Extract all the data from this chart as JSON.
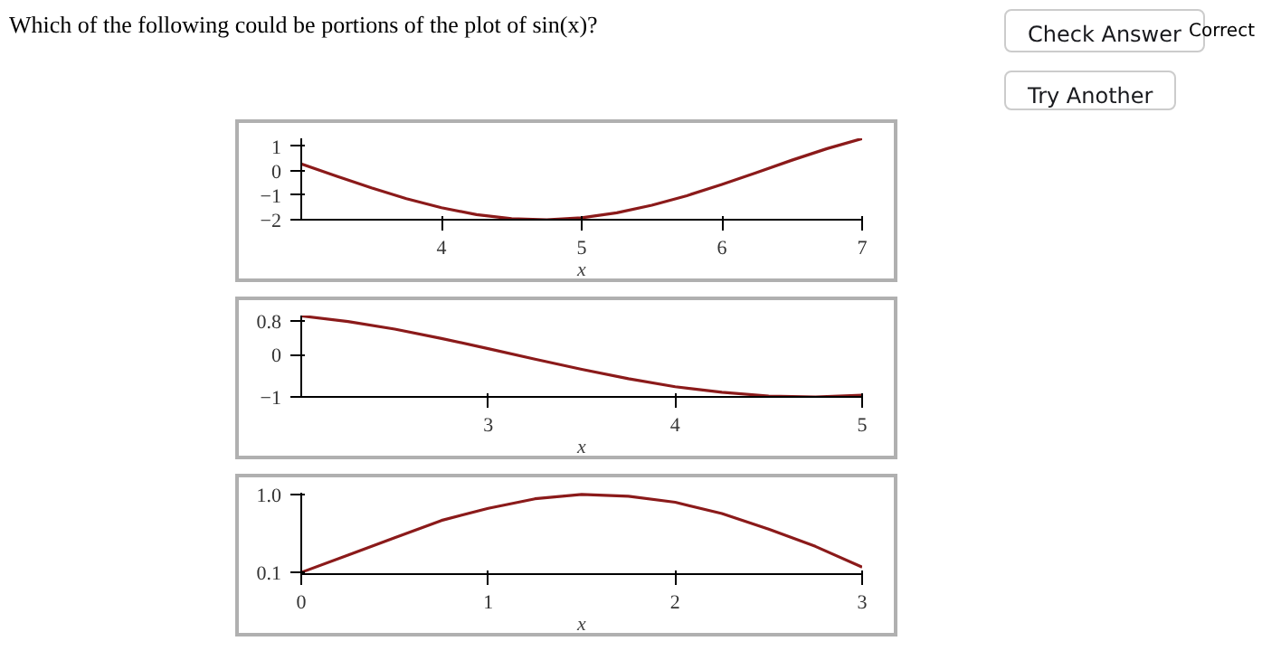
{
  "chart_data": [
    {
      "type": "line",
      "title": "Which of the following could be portions of the plot of sin(x)?",
      "annotations": [
        "Check Answer",
        "Correct",
        "Try Another"
      ],
      "xlabel": "x",
      "x": [
        3,
        3.25,
        3.5,
        3.75,
        4,
        4.25,
        4.5,
        4.75,
        5,
        5.25,
        5.5,
        5.75,
        6,
        6.25,
        6.5,
        6.75,
        7
      ],
      "series": [
        {
          "color": "#8b1a1a",
          "values": [
            0.28,
            -0.22,
            -0.7,
            -1.14,
            -1.51,
            -1.79,
            -1.96,
            -2.0,
            -1.92,
            -1.72,
            -1.41,
            -1.02,
            -0.56,
            -0.07,
            0.43,
            0.9,
            1.31
          ]
        }
      ],
      "xlim": [
        3,
        7
      ],
      "ylim": [
        -2,
        1.32
      ],
      "xticks": [
        4,
        5,
        6,
        7
      ],
      "yticks": [
        -2,
        -1,
        0,
        1
      ],
      "grid": false
    },
    {
      "type": "line",
      "xlabel": "x",
      "x": [
        2,
        2.25,
        2.5,
        2.75,
        3,
        3.25,
        3.5,
        3.75,
        4,
        4.25,
        4.5,
        4.75,
        5
      ],
      "series": [
        {
          "color": "#8b1a1a",
          "values": [
            0.91,
            0.78,
            0.6,
            0.38,
            0.14,
            -0.11,
            -0.35,
            -0.57,
            -0.76,
            -0.89,
            -0.98,
            -1.0,
            -0.96
          ]
        }
      ],
      "xlim": [
        2,
        5
      ],
      "ylim": [
        -1,
        0.92
      ],
      "xticks": [
        3,
        4,
        5
      ],
      "yticks": [
        -1,
        0,
        0.8
      ],
      "grid": false
    },
    {
      "type": "line",
      "xlabel": "x",
      "x": [
        0,
        0.25,
        0.5,
        0.75,
        1,
        1.25,
        1.5,
        1.75,
        2,
        2.25,
        2.5,
        2.75,
        3
      ],
      "series": [
        {
          "color": "#8b1a1a",
          "values": [
            0.1,
            0.3,
            0.5,
            0.7,
            0.84,
            0.95,
            1.0,
            0.98,
            0.91,
            0.78,
            0.6,
            0.4,
            0.16
          ]
        }
      ],
      "xlim": [
        0,
        3
      ],
      "ylim": [
        0.08,
        1.02
      ],
      "xticks": [
        0,
        1,
        2,
        3
      ],
      "yticks": [
        0.1,
        {
          "value": 1,
          "label": "1.0"
        }
      ],
      "grid": false
    }
  ]
}
